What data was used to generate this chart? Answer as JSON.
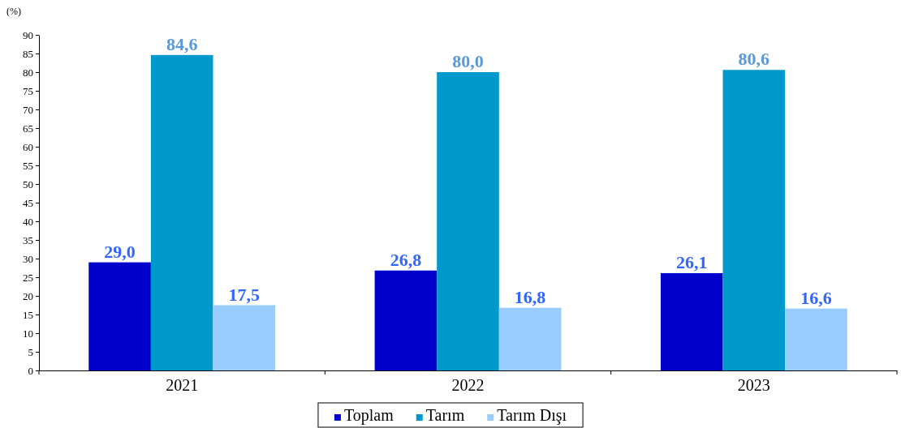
{
  "chart_data": {
    "type": "bar",
    "ylabel": "(%)",
    "categories": [
      "2021",
      "2022",
      "2023"
    ],
    "series": [
      {
        "name": "Toplam",
        "color": "#0000cc",
        "values": [
          29.0,
          26.8,
          26.1
        ],
        "value_labels": [
          "29,0",
          "26,8",
          "26,1"
        ]
      },
      {
        "name": "Tarım",
        "color": "#0099cc",
        "values": [
          84.6,
          80.0,
          80.6
        ],
        "value_labels": [
          "84,6",
          "80,0",
          "80,6"
        ]
      },
      {
        "name": "Tarım Dışı",
        "color": "#99ccff",
        "values": [
          17.5,
          16.8,
          16.6
        ],
        "value_labels": [
          "17,5",
          "16,8",
          "16,6"
        ]
      }
    ],
    "ylim": [
      0,
      90
    ],
    "yticks": [
      0,
      5,
      10,
      15,
      20,
      25,
      30,
      35,
      40,
      45,
      50,
      55,
      60,
      65,
      70,
      75,
      80,
      85,
      90
    ],
    "grid": false,
    "legend": "bottom"
  }
}
